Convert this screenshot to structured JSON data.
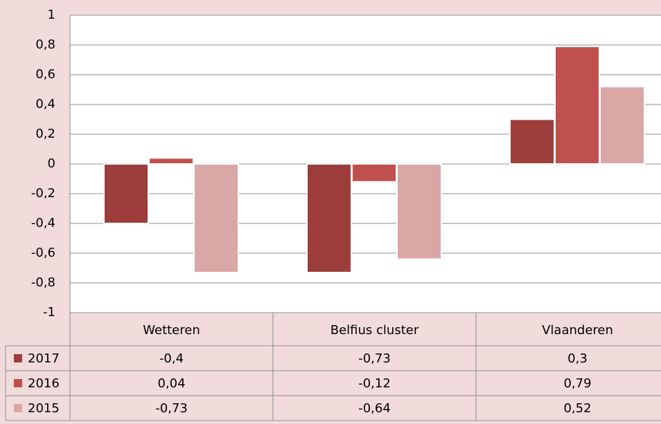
{
  "chart_data": {
    "type": "bar",
    "categories": [
      "Wetteren",
      "Belfius cluster",
      "Vlaanderen"
    ],
    "series": [
      {
        "name": "2017",
        "color": "#9c3d3b",
        "values": [
          -0.4,
          -0.73,
          0.3
        ],
        "value_labels": [
          "-0,4",
          "-0,73",
          "0,3"
        ]
      },
      {
        "name": "2016",
        "color": "#c0504d",
        "values": [
          0.04,
          -0.12,
          0.79
        ],
        "value_labels": [
          "0,04",
          "-0,12",
          "0,79"
        ]
      },
      {
        "name": "2015",
        "color": "#d9a7a6",
        "values": [
          -0.73,
          -0.64,
          0.52
        ],
        "value_labels": [
          "-0,73",
          "-0,64",
          "0,52"
        ]
      }
    ],
    "ylim": [
      -1,
      1
    ],
    "yticks": [
      -1,
      {
        "value": -0.8,
        "label": "-0,8"
      },
      {
        "value": -0.6,
        "label": "-0,6"
      },
      {
        "value": -0.4,
        "label": "-0,4"
      },
      {
        "value": -0.2,
        "label": "-0,2"
      },
      0,
      {
        "value": 0.2,
        "label": "0,2"
      },
      {
        "value": 0.4,
        "label": "0,4"
      },
      {
        "value": 0.6,
        "label": "0,6"
      },
      {
        "value": 0.8,
        "label": "0,8"
      },
      1
    ],
    "grid": true,
    "data_table": true
  }
}
